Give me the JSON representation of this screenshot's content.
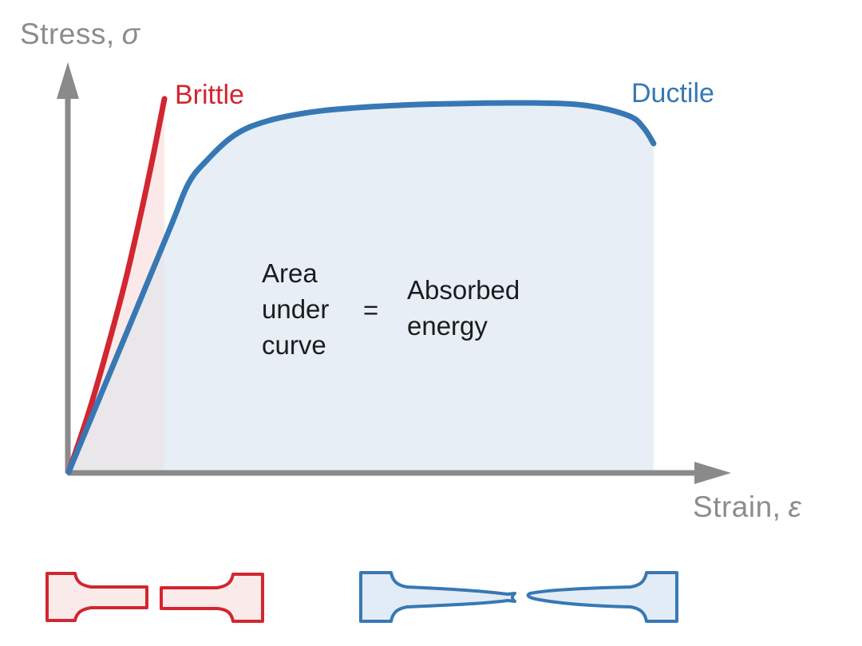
{
  "figure": {
    "y_axis": {
      "label": "Stress,",
      "symbol": "σ"
    },
    "x_axis": {
      "label": "Strain,",
      "symbol": "ε"
    },
    "curve_labels": {
      "brittle": "Brittle",
      "ductile": "Ductile"
    },
    "annotation": {
      "lhs": "Area under curve",
      "eq": "=",
      "rhs": "Absorbed energy"
    }
  },
  "colors": {
    "red": "#d22630",
    "blue": "#3778b4",
    "gray_axis": "#8a8a8a",
    "gray_label": "#8c8c8c",
    "ink": "#1c1c1c",
    "pink_fill": "#fbe9e9",
    "blue_fill": "#e7eef6",
    "overlap_fill": "#e9e7ea",
    "pink_specimen_fill": "#fbeaea",
    "blue_specimen_fill": "#e2ecf6"
  },
  "icons": {
    "brittle_specimen": "broken-dogbone-flat-fracture-icon",
    "ductile_specimen": "broken-dogbone-necked-fracture-icon"
  },
  "chart_data": {
    "type": "line",
    "title": "",
    "xlabel": "Strain, ε",
    "ylabel": "Stress, σ",
    "axis_tick_labels": false,
    "units": "normalized 0-1 (qualitative sketch, no numeric ticks shown)",
    "legend_position": "labels at curve ends",
    "grid": false,
    "xlim": [
      0,
      1
    ],
    "ylim": [
      0,
      1
    ],
    "series": [
      {
        "name": "Brittle",
        "color": "#d22630",
        "fill_under": "#fbe9e9",
        "x": [
          0,
          0.035,
          0.08,
          0.105,
          0.125,
          0.138,
          0.1446
        ],
        "y": [
          0,
          0.17,
          0.43,
          0.6,
          0.75,
          0.855,
          0.909
        ]
      },
      {
        "name": "Ductile",
        "color": "#3778b4",
        "fill_under": "#e7eef6",
        "x": [
          0,
          0.08,
          0.153,
          0.18,
          0.205,
          0.25,
          0.3,
          0.373,
          0.46,
          0.55,
          0.69,
          0.78,
          0.845,
          0.868,
          0.883
        ],
        "y": [
          0,
          0.31,
          0.594,
          0.7,
          0.753,
          0.82,
          0.855,
          0.878,
          0.89,
          0.896,
          0.899,
          0.893,
          0.868,
          0.838,
          0.8
        ]
      }
    ],
    "overlap_fill": "#e9e7ea",
    "annotation_text": "Area under curve = Absorbed energy"
  }
}
